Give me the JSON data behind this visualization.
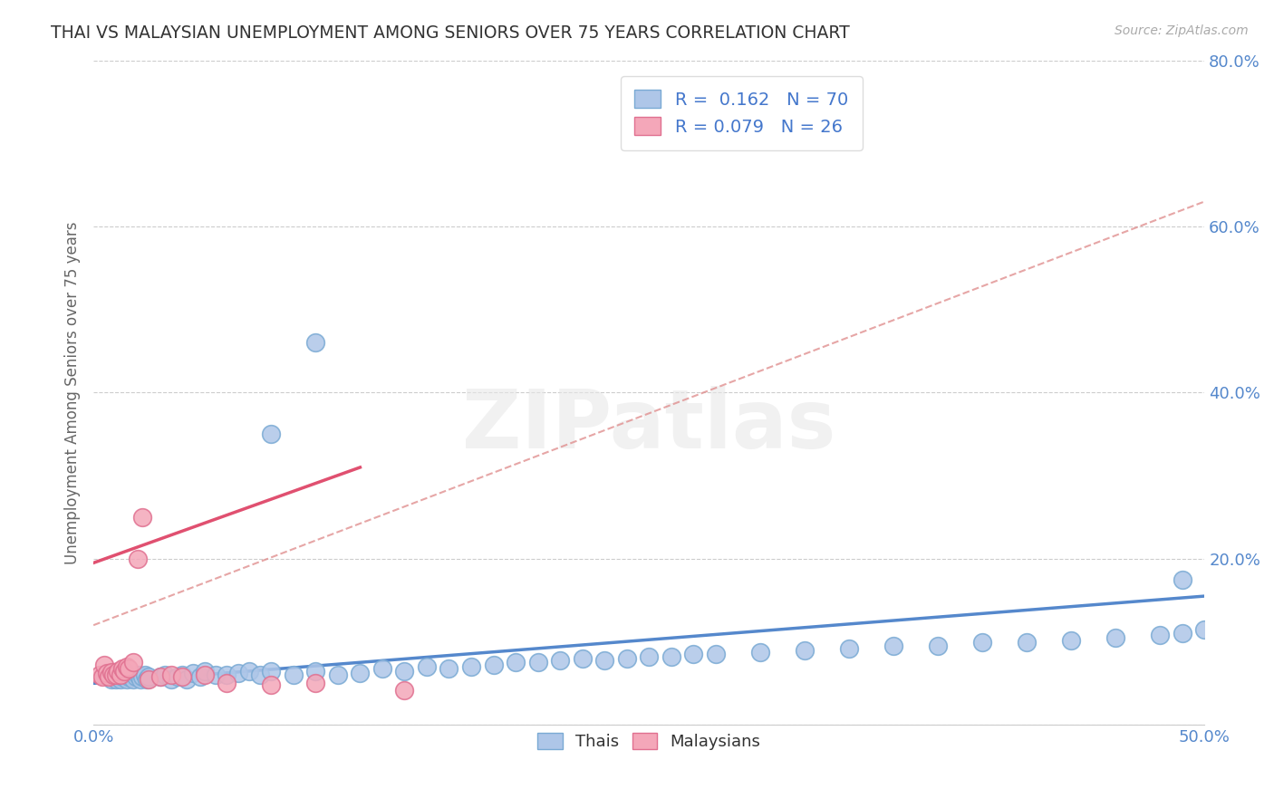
{
  "title": "THAI VS MALAYSIAN UNEMPLOYMENT AMONG SENIORS OVER 75 YEARS CORRELATION CHART",
  "source": "Source: ZipAtlas.com",
  "ylabel_label": "Unemployment Among Seniors over 75 years",
  "xlim": [
    0.0,
    0.5
  ],
  "ylim": [
    0.0,
    0.8
  ],
  "yticks": [
    0.0,
    0.2,
    0.4,
    0.6,
    0.8
  ],
  "ytick_labels": [
    "",
    "20.0%",
    "40.0%",
    "60.0%",
    "80.0%"
  ],
  "xtick_labels": [
    "0.0%",
    "50.0%"
  ],
  "legend_labels_bottom": [
    "Thais",
    "Malaysians"
  ],
  "watermark": "ZIPatlas",
  "title_color": "#333333",
  "axis_label_color": "#666666",
  "tick_color": "#5588cc",
  "thai_color": "#aec6e8",
  "thai_edge_color": "#7aaad4",
  "malaysian_color": "#f4a7b9",
  "malaysian_edge_color": "#e07090",
  "thai_trend_color": "#5588cc",
  "malaysian_trend_color": "#e05070",
  "dashed_trend_color": "#e09090",
  "grid_color": "#cccccc",
  "background_color": "#ffffff",
  "thai_R": 0.162,
  "thai_N": 70,
  "malaysian_R": 0.079,
  "malaysian_N": 26,
  "thai_points_x": [
    0.005,
    0.008,
    0.009,
    0.01,
    0.01,
    0.011,
    0.012,
    0.013,
    0.014,
    0.015,
    0.016,
    0.017,
    0.018,
    0.019,
    0.02,
    0.021,
    0.022,
    0.023,
    0.024,
    0.025,
    0.03,
    0.032,
    0.035,
    0.038,
    0.04,
    0.042,
    0.045,
    0.048,
    0.05,
    0.055,
    0.06,
    0.065,
    0.07,
    0.075,
    0.08,
    0.09,
    0.1,
    0.11,
    0.12,
    0.13,
    0.14,
    0.15,
    0.16,
    0.17,
    0.18,
    0.19,
    0.2,
    0.21,
    0.22,
    0.23,
    0.24,
    0.25,
    0.26,
    0.27,
    0.28,
    0.3,
    0.32,
    0.34,
    0.36,
    0.38,
    0.4,
    0.42,
    0.44,
    0.46,
    0.48,
    0.49,
    0.5,
    0.08,
    0.1,
    0.49
  ],
  "thai_points_y": [
    0.06,
    0.055,
    0.06,
    0.055,
    0.06,
    0.058,
    0.055,
    0.058,
    0.06,
    0.055,
    0.058,
    0.06,
    0.055,
    0.058,
    0.06,
    0.055,
    0.058,
    0.06,
    0.055,
    0.058,
    0.058,
    0.06,
    0.055,
    0.058,
    0.06,
    0.055,
    0.062,
    0.058,
    0.065,
    0.06,
    0.06,
    0.062,
    0.065,
    0.06,
    0.065,
    0.06,
    0.065,
    0.06,
    0.062,
    0.068,
    0.065,
    0.07,
    0.068,
    0.07,
    0.072,
    0.075,
    0.075,
    0.078,
    0.08,
    0.078,
    0.08,
    0.082,
    0.082,
    0.085,
    0.085,
    0.088,
    0.09,
    0.092,
    0.095,
    0.095,
    0.1,
    0.1,
    0.102,
    0.105,
    0.108,
    0.11,
    0.115,
    0.35,
    0.46,
    0.175
  ],
  "malaysian_points_x": [
    0.003,
    0.004,
    0.005,
    0.006,
    0.007,
    0.008,
    0.009,
    0.01,
    0.011,
    0.012,
    0.013,
    0.014,
    0.015,
    0.016,
    0.018,
    0.02,
    0.022,
    0.025,
    0.03,
    0.035,
    0.04,
    0.05,
    0.06,
    0.08,
    0.1,
    0.14
  ],
  "malaysian_points_y": [
    0.06,
    0.058,
    0.072,
    0.062,
    0.058,
    0.063,
    0.06,
    0.06,
    0.065,
    0.06,
    0.068,
    0.065,
    0.07,
    0.068,
    0.075,
    0.2,
    0.25,
    0.055,
    0.058,
    0.06,
    0.058,
    0.06,
    0.05,
    0.048,
    0.05,
    0.042
  ]
}
